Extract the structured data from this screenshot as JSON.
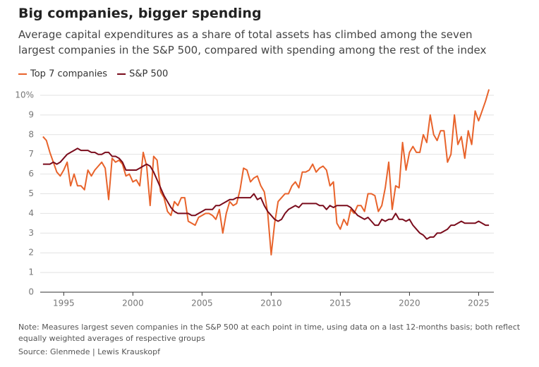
{
  "chart_data": {
    "type": "line",
    "title": "Big companies, bigger spending",
    "subtitle": "Average capital expenditures as a share of total assets has climbed among the seven largest companies in the S&P 500, compared with spending among the rest of the index",
    "note": "Note: Measures largest seven companies in the S&P 500 at each point in time, using data on a last 12-months basis; both reflect equally weighted averages of respective groups",
    "source": "Source: Glenmede | Lewis Krauskopf",
    "x": [
      1993.5,
      1993.75,
      1994,
      1994.25,
      1994.5,
      1994.75,
      1995,
      1995.25,
      1995.5,
      1995.75,
      1996,
      1996.25,
      1996.5,
      1996.75,
      1997,
      1997.25,
      1997.5,
      1997.75,
      1998,
      1998.25,
      1998.5,
      1998.75,
      1999,
      1999.25,
      1999.5,
      1999.75,
      2000,
      2000.25,
      2000.5,
      2000.75,
      2001,
      2001.25,
      2001.5,
      2001.75,
      2002,
      2002.25,
      2002.5,
      2002.75,
      2003,
      2003.25,
      2003.5,
      2003.75,
      2004,
      2004.25,
      2004.5,
      2004.75,
      2005,
      2005.25,
      2005.5,
      2005.75,
      2006,
      2006.25,
      2006.5,
      2006.75,
      2007,
      2007.25,
      2007.5,
      2007.75,
      2008,
      2008.25,
      2008.5,
      2008.75,
      2009,
      2009.25,
      2009.5,
      2009.75,
      2010,
      2010.25,
      2010.5,
      2010.75,
      2011,
      2011.25,
      2011.5,
      2011.75,
      2012,
      2012.25,
      2012.5,
      2012.75,
      2013,
      2013.25,
      2013.5,
      2013.75,
      2014,
      2014.25,
      2014.5,
      2014.75,
      2015,
      2015.25,
      2015.5,
      2015.75,
      2016,
      2016.25,
      2016.5,
      2016.75,
      2017,
      2017.25,
      2017.5,
      2017.75,
      2018,
      2018.25,
      2018.5,
      2018.75,
      2019,
      2019.25,
      2019.5,
      2019.75,
      2020,
      2020.25,
      2020.5,
      2020.75,
      2021,
      2021.25,
      2021.5,
      2021.75,
      2022,
      2022.25,
      2022.5,
      2022.75,
      2023,
      2023.25,
      2023.5,
      2023.75,
      2024,
      2024.25,
      2024.5,
      2024.75,
      2025,
      2025.25,
      2025.5,
      2025.75
    ],
    "series": [
      {
        "name": "Top 7 companies",
        "color": "#e8632b",
        "values": [
          7.9,
          7.7,
          7.1,
          6.6,
          6.1,
          5.9,
          6.2,
          6.6,
          5.4,
          6.0,
          5.4,
          5.4,
          5.2,
          6.2,
          5.9,
          6.2,
          6.4,
          6.6,
          6.3,
          4.7,
          6.8,
          6.6,
          6.7,
          6.5,
          5.9,
          6.0,
          5.6,
          5.7,
          5.4,
          7.1,
          6.4,
          4.4,
          6.9,
          6.7,
          5.1,
          4.8,
          4.1,
          3.9,
          4.6,
          4.4,
          4.8,
          4.8,
          3.6,
          3.5,
          3.4,
          3.8,
          3.9,
          4.0,
          4.0,
          3.9,
          3.7,
          4.2,
          3.0,
          4.0,
          4.6,
          4.4,
          4.5,
          5.2,
          6.3,
          6.2,
          5.6,
          5.8,
          5.9,
          5.4,
          5.1,
          4.0,
          1.9,
          3.5,
          4.6,
          4.8,
          5.0,
          5.0,
          5.4,
          5.6,
          5.3,
          6.1,
          6.1,
          6.2,
          6.5,
          6.1,
          6.3,
          6.4,
          6.2,
          5.4,
          5.6,
          3.5,
          3.2,
          3.7,
          3.4,
          4.2,
          4.0,
          4.4,
          4.4,
          4.1,
          5.0,
          5.0,
          4.9,
          4.1,
          4.4,
          5.3,
          6.6,
          4.2,
          5.4,
          5.3,
          7.6,
          6.2,
          7.1,
          7.4,
          7.1,
          7.1,
          8.0,
          7.6,
          9.0,
          8.0,
          7.7,
          8.2,
          8.2,
          6.6,
          7.0,
          9.0,
          7.5,
          7.9,
          6.8,
          8.2,
          7.5,
          9.2,
          8.7,
          9.2,
          9.7,
          10.3
        ]
      },
      {
        "name": "S&P 500",
        "color": "#7a0c1c",
        "values": [
          6.5,
          6.5,
          6.5,
          6.6,
          6.5,
          6.6,
          6.8,
          7.0,
          7.1,
          7.2,
          7.3,
          7.2,
          7.2,
          7.2,
          7.1,
          7.1,
          7.0,
          7.0,
          7.1,
          7.1,
          6.9,
          6.9,
          6.8,
          6.6,
          6.2,
          6.2,
          6.2,
          6.2,
          6.3,
          6.4,
          6.5,
          6.4,
          6.1,
          5.7,
          5.3,
          4.9,
          4.6,
          4.3,
          4.1,
          4.0,
          4.0,
          4.0,
          4.0,
          3.9,
          3.9,
          4.0,
          4.1,
          4.2,
          4.2,
          4.2,
          4.4,
          4.4,
          4.5,
          4.6,
          4.7,
          4.7,
          4.8,
          4.8,
          4.8,
          4.8,
          4.8,
          5.0,
          4.7,
          4.8,
          4.4,
          4.1,
          3.9,
          3.7,
          3.6,
          3.7,
          4.0,
          4.2,
          4.3,
          4.4,
          4.3,
          4.5,
          4.5,
          4.5,
          4.5,
          4.5,
          4.4,
          4.4,
          4.2,
          4.4,
          4.3,
          4.4,
          4.4,
          4.4,
          4.4,
          4.3,
          4.1,
          3.9,
          3.8,
          3.7,
          3.8,
          3.6,
          3.4,
          3.4,
          3.7,
          3.6,
          3.7,
          3.7,
          4.0,
          3.7,
          3.7,
          3.6,
          3.7,
          3.4,
          3.2,
          3.0,
          2.9,
          2.7,
          2.8,
          2.8,
          3.0,
          3.0,
          3.1,
          3.2,
          3.4,
          3.4,
          3.5,
          3.6,
          3.5,
          3.5,
          3.5,
          3.5,
          3.6,
          3.5,
          3.4,
          3.4
        ]
      }
    ],
    "xlim": [
      1993.3,
      2026.1
    ],
    "xticks": [
      1995,
      2000,
      2005,
      2010,
      2015,
      2020,
      2025
    ],
    "ylim": [
      0,
      10.5
    ],
    "yticks": [
      0,
      1,
      2,
      3,
      4,
      5,
      6,
      7,
      8,
      9,
      {
        "value": 10,
        "label": "10%"
      }
    ],
    "grid": true
  }
}
